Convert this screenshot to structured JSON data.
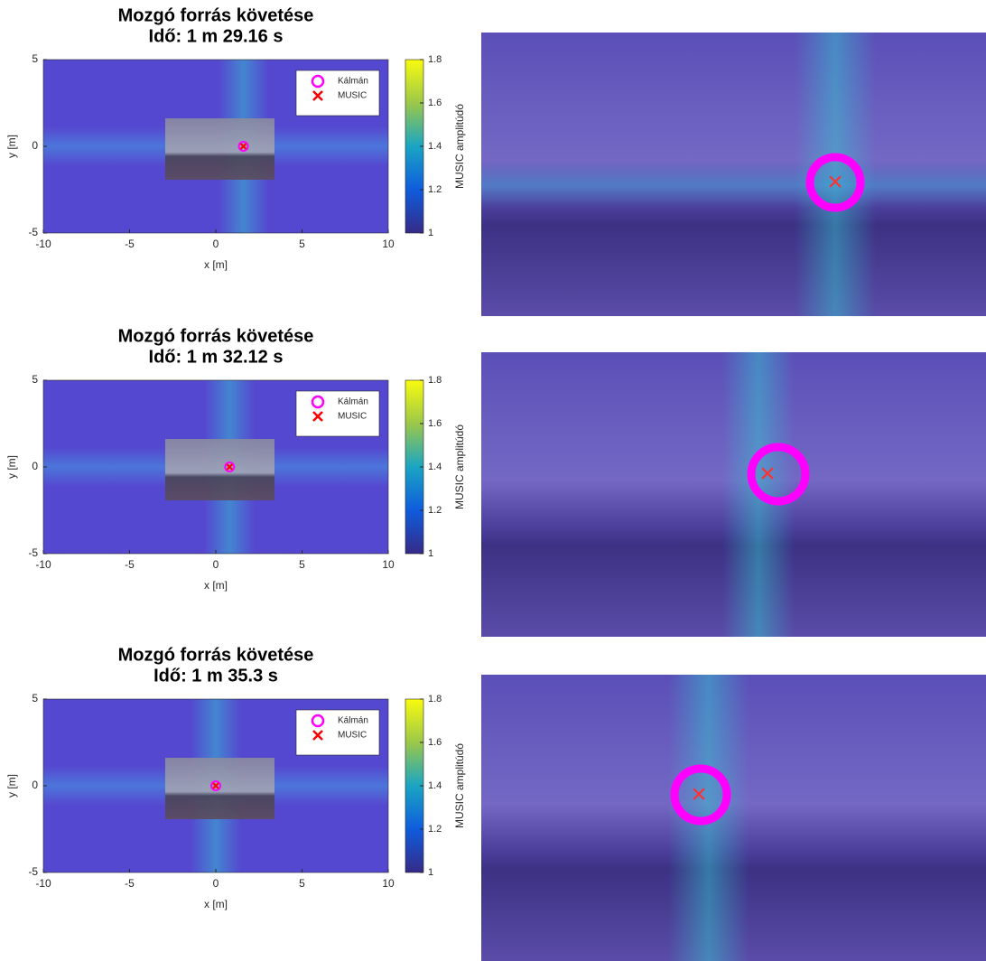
{
  "chart_data": [
    {
      "type": "scatter",
      "title": [
        "Mozgó forrás követése",
        "Idő: 1 m 29.16 s"
      ],
      "xlabel": "x [m]",
      "ylabel": "y [m]",
      "xlim": [
        -10,
        10
      ],
      "ylim": [
        -5,
        5
      ],
      "xticks": [
        -10,
        -5,
        0,
        5,
        10
      ],
      "yticks": [
        -5,
        0,
        5
      ],
      "colorbar": {
        "label": "MUSIC amplitúdó",
        "lim": [
          1,
          1.8
        ],
        "ticks": [
          1,
          1.2,
          1.4,
          1.6,
          1.8
        ]
      },
      "series": [
        {
          "name": "Kálmán",
          "color": "#ff00ff",
          "marker": "circle",
          "x": [
            1.6
          ],
          "values": [
            0
          ]
        },
        {
          "name": "MUSIC",
          "color": "#ff0000",
          "marker": "x",
          "x": [
            1.6
          ],
          "values": [
            0
          ]
        }
      ]
    },
    {
      "type": "scatter",
      "title": [
        "Mozgó forrás követése",
        "Idő: 1 m 32.12 s"
      ],
      "xlabel": "x [m]",
      "ylabel": "y [m]",
      "xlim": [
        -10,
        10
      ],
      "ylim": [
        -5,
        5
      ],
      "xticks": [
        -10,
        -5,
        0,
        5,
        10
      ],
      "yticks": [
        -5,
        0,
        5
      ],
      "colorbar": {
        "label": "MUSIC amplitúdó",
        "lim": [
          1,
          1.8
        ],
        "ticks": [
          1,
          1.2,
          1.4,
          1.6,
          1.8
        ]
      },
      "series": [
        {
          "name": "Kálmán",
          "color": "#ff00ff",
          "marker": "circle",
          "x": [
            0.8
          ],
          "values": [
            0
          ]
        },
        {
          "name": "MUSIC",
          "color": "#ff0000",
          "marker": "x",
          "x": [
            0.8
          ],
          "values": [
            0
          ]
        }
      ]
    },
    {
      "type": "scatter",
      "title": [
        "Mozgó forrás követése",
        "Idő: 1 m 35.3 s"
      ],
      "xlabel": "x [m]",
      "ylabel": "y [m]",
      "xlim": [
        -10,
        10
      ],
      "ylim": [
        -5,
        5
      ],
      "xticks": [
        -10,
        -5,
        0,
        5,
        10
      ],
      "yticks": [
        -5,
        0,
        5
      ],
      "colorbar": {
        "label": "MUSIC amplitúdó",
        "lim": [
          1,
          1.8
        ],
        "ticks": [
          1,
          1.2,
          1.4,
          1.6,
          1.8
        ]
      },
      "series": [
        {
          "name": "Kálmán",
          "color": "#ff00ff",
          "marker": "circle",
          "x": [
            0
          ],
          "values": [
            0
          ]
        },
        {
          "name": "MUSIC",
          "color": "#ff0000",
          "marker": "x",
          "x": [
            0
          ],
          "values": [
            0
          ]
        }
      ]
    }
  ]
}
